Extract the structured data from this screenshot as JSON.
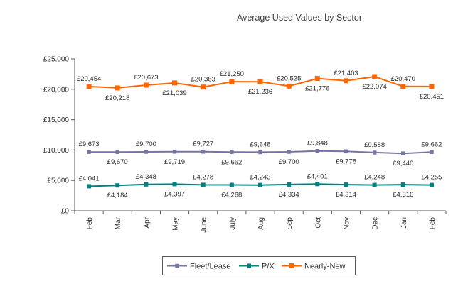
{
  "chart_data": {
    "type": "line",
    "title": "Average Used Values by Sector",
    "currency_prefix": "£",
    "categories": [
      "Feb",
      "Mar",
      "Apr",
      "May",
      "June",
      "July",
      "Aug",
      "Sep",
      "Oct",
      "Nov",
      "Dec",
      "Jan",
      "Feb"
    ],
    "xlabel": "",
    "ylabel": "",
    "ylim": [
      0,
      25000
    ],
    "y_tick_values": [
      0,
      5000,
      10000,
      15000,
      20000,
      25000
    ],
    "y_tick_labels": [
      "£0",
      "£5,000",
      "£10,000",
      "£15,000",
      "£20,000",
      "£25,000"
    ],
    "grid": false,
    "axis_color": "#595959",
    "series": [
      {
        "name": "Fleet/Lease",
        "color": "#7575A3",
        "marker": "square",
        "marker_size": 5.5,
        "values": [
          9673,
          9670,
          9700,
          9719,
          9727,
          9662,
          9648,
          9700,
          9848,
          9778,
          9588,
          9440,
          9662
        ],
        "label_sides": [
          "above",
          "below",
          "above",
          "below",
          "above",
          "below",
          "above",
          "below",
          "above",
          "below",
          "above",
          "below",
          "above"
        ]
      },
      {
        "name": "P/X",
        "color": "#008080",
        "marker": "square",
        "marker_size": 6,
        "values": [
          4041,
          4184,
          4348,
          4397,
          4278,
          4268,
          4243,
          4334,
          4401,
          4314,
          4248,
          4316,
          4255
        ],
        "label_sides": [
          "above",
          "below",
          "above",
          "below",
          "above",
          "below",
          "above",
          "below",
          "above",
          "below",
          "above",
          "below",
          "above"
        ]
      },
      {
        "name": "Nearly-New",
        "color": "#FF6600",
        "marker": "square",
        "marker_size": 7,
        "values": [
          20454,
          20218,
          20673,
          21039,
          20363,
          21250,
          21236,
          20525,
          21776,
          21403,
          22074,
          20470,
          20451
        ],
        "label_sides": [
          "above",
          "below",
          "above",
          "below",
          "above",
          "above",
          "below",
          "above",
          "below",
          "above",
          "below",
          "above",
          "below"
        ]
      }
    ],
    "legend": {
      "position": "bottom",
      "entries": [
        "Fleet/Lease",
        "P/X",
        "Nearly-New"
      ]
    }
  }
}
